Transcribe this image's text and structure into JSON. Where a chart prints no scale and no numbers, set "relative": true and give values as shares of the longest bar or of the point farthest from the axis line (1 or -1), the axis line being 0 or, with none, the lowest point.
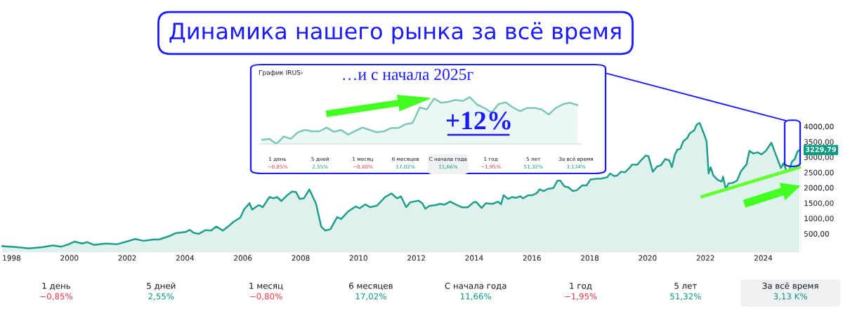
{
  "chart_data": [
    {
      "type": "area",
      "title": "Динамика нашего рынка за всё время",
      "x": [
        1997.68,
        1998.14,
        1998.6,
        1999.06,
        1999.43,
        1999.71,
        2000.0,
        2000.17,
        2000.44,
        2000.62,
        2000.85,
        2001.27,
        2001.64,
        2002.0,
        2002.28,
        2002.55,
        2002.92,
        2003.11,
        2003.47,
        2003.66,
        2004.02,
        2004.16,
        2004.3,
        2004.48,
        2004.71,
        2004.9,
        2005.08,
        2005.31,
        2005.49,
        2005.68,
        2005.91,
        2006.05,
        2006.23,
        2006.32,
        2006.55,
        2006.69,
        2006.92,
        2007.06,
        2007.19,
        2007.33,
        2007.52,
        2007.7,
        2007.84,
        2007.96,
        2008.11,
        2008.3,
        2008.53,
        2008.71,
        2008.85,
        2009.03,
        2009.26,
        2009.4,
        2009.63,
        2009.9,
        2010.04,
        2010.23,
        2010.41,
        2010.64,
        2010.92,
        2011.14,
        2011.33,
        2011.47,
        2011.65,
        2011.79,
        2012.07,
        2012.21,
        2012.31,
        2012.45,
        2012.64,
        2012.83,
        2012.97,
        2013.17,
        2013.36,
        2013.59,
        2013.78,
        2013.97,
        2014.07,
        2014.26,
        2014.4,
        2014.64,
        2014.83,
        2014.93,
        2015.02,
        2015.17,
        2015.31,
        2015.45,
        2015.6,
        2015.69,
        2015.88,
        2016.02,
        2016.17,
        2016.26,
        2016.41,
        2016.55,
        2016.74,
        2016.88,
        2016.98,
        2017.12,
        2017.27,
        2017.41,
        2017.55,
        2017.74,
        2017.89,
        2018.03,
        2018.22,
        2018.41,
        2018.6,
        2018.7,
        2018.84,
        2018.94,
        2019.08,
        2019.22,
        2019.37,
        2019.46,
        2019.65,
        2019.75,
        2019.94,
        2020.03,
        2020.18,
        2020.32,
        2020.46,
        2020.61,
        2020.75,
        2020.84,
        2020.94,
        2021.03,
        2021.13,
        2021.23,
        2021.37,
        2021.46,
        2021.61,
        2021.7,
        2021.8,
        2021.94,
        2022.04,
        2022.11,
        2022.18,
        2022.27,
        2022.42,
        2022.56,
        2022.61,
        2022.7,
        2022.8,
        2022.94,
        2023.09,
        2023.23,
        2023.42,
        2023.52,
        2023.66,
        2023.8,
        2023.94,
        2024.09,
        2024.28,
        2024.42,
        2024.61,
        2024.71,
        2024.8,
        2024.9,
        2024.99,
        2025.09,
        2025.18,
        2025.25
      ],
      "series": [
        {
          "type": "area",
          "color": "#1f9e89",
          "values": [
            93,
            67,
            23,
            58,
            119,
            76,
            164,
            242,
            181,
            225,
            136,
            181,
            155,
            251,
            330,
            269,
            312,
            312,
            427,
            514,
            558,
            628,
            532,
            498,
            619,
            603,
            734,
            603,
            734,
            892,
            1023,
            1304,
            1497,
            1286,
            1436,
            1366,
            1698,
            1655,
            1698,
            1567,
            1743,
            1874,
            1857,
            1638,
            1655,
            1944,
            1480,
            734,
            603,
            647,
            1041,
            979,
            1216,
            1391,
            1331,
            1453,
            1366,
            1418,
            1698,
            1813,
            1655,
            1716,
            1366,
            1524,
            1581,
            1492,
            1315,
            1405,
            1431,
            1475,
            1449,
            1546,
            1458,
            1360,
            1360,
            1519,
            1537,
            1342,
            1492,
            1475,
            1546,
            1458,
            1758,
            1635,
            1697,
            1671,
            1724,
            1653,
            1758,
            1758,
            1829,
            1945,
            1892,
            1963,
            1990,
            2229,
            2229,
            2050,
            2008,
            1892,
            1919,
            2077,
            2077,
            2274,
            2292,
            2301,
            2343,
            2468,
            2379,
            2397,
            2522,
            2504,
            2645,
            2752,
            2752,
            2875,
            3053,
            3027,
            2522,
            2689,
            2734,
            2937,
            2893,
            2671,
            3071,
            3248,
            3266,
            3514,
            3621,
            3780,
            3869,
            4063,
            4117,
            3780,
            3514,
            2468,
            2671,
            2406,
            2256,
            2202,
            2361,
            1963,
            2140,
            2158,
            2229,
            2540,
            2761,
            3203,
            3116,
            3158,
            3089,
            3203,
            3469,
            3116,
            2645,
            2805,
            2540,
            2584,
            2850,
            2937,
            3176,
            3229.79
          ]
        },
        {
          "type": "line",
          "color": "#66ff33",
          "x": [
            2021.88,
            2025.25
          ],
          "values": [
            1710,
            2670
          ]
        }
      ],
      "xlim": [
        1997.6,
        2025.3
      ],
      "xticks": [
        1998,
        2000,
        2002,
        2004,
        2006,
        2008,
        2010,
        2012,
        2014,
        2016,
        2018,
        2020,
        2022,
        2024
      ],
      "ylim": [
        -100,
        4300
      ],
      "yticks": [
        {
          "value": 500,
          "label": "500,00"
        },
        {
          "value": 1000,
          "label": "1000,00"
        },
        {
          "value": 1500,
          "label": "1500,00"
        },
        {
          "value": 2000,
          "label": "2000,00"
        },
        {
          "value": 2500,
          "label": "2500,00"
        },
        {
          "value": 3000,
          "label": "3000,00"
        },
        {
          "value": 3500,
          "label": "3500,00"
        },
        {
          "value": 4000,
          "label": "4000,00"
        }
      ],
      "grid": false,
      "annotations": [
        {
          "text": "3229,79",
          "x": 2025.25,
          "y": 3229.79
        },
        "1 день",
        "−0,85%",
        "5 дней",
        "2,55%",
        "1 месяц",
        "−0,80%",
        "6 месяцев",
        "17,02%",
        "С начала года",
        "11,66%",
        "1 год",
        "−1,95%",
        "5 лет",
        "51,32%",
        "За всё время",
        "3,13 K%"
      ]
    },
    {
      "type": "area",
      "title": "График IRUS›",
      "subtitle": "…и с начала 2025г",
      "relative": true,
      "categories": [
        null,
        null,
        null,
        null,
        null,
        null,
        null,
        null,
        null,
        null,
        null,
        null,
        null,
        null,
        null,
        null,
        null,
        null,
        null,
        null,
        null,
        null,
        null,
        null,
        null,
        null,
        null,
        null,
        null,
        null,
        null,
        null,
        null,
        null,
        null,
        null,
        null,
        null,
        null,
        null,
        null,
        null,
        null,
        null,
        null
      ],
      "series": [
        {
          "color": "#7cc7b6",
          "values": [
            0.09,
            0.11,
            0,
            0.16,
            0.11,
            0.25,
            0.3,
            0.27,
            0.27,
            0.35,
            0.26,
            0.3,
            0.2,
            0.28,
            0.35,
            0.3,
            0.25,
            0.27,
            0.34,
            0.34,
            0.42,
            0.45,
            0.78,
            0.74,
            0.97,
            0.88,
            0.9,
            0.94,
            0.92,
            1,
            0.84,
            0.77,
            0.67,
            0.85,
            0.89,
            0.78,
            0.7,
            0.77,
            0.77,
            0.74,
            0.63,
            0.77,
            0.85,
            0.88,
            0.83
          ]
        }
      ],
      "annotations": [
        "+12%",
        "1 день",
        "−0,85%",
        "5 дней",
        "2,55%",
        "1 месяц",
        "−0,80%",
        "6 месяцев",
        "17,02%",
        "С начала года",
        "11,66%",
        "1 год",
        "−1,95%",
        "5 лет",
        "51,32%",
        "За всё время",
        "3,134%"
      ]
    }
  ]
}
